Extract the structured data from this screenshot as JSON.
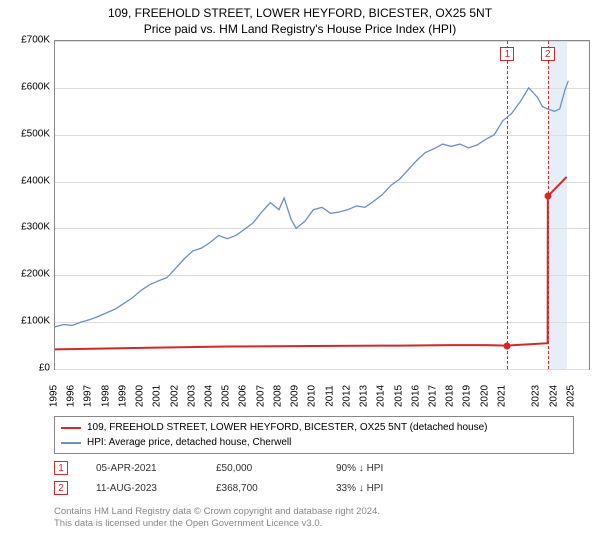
{
  "titles": {
    "main": "109, FREEHOLD STREET, LOWER HEYFORD, BICESTER, OX25 5NT",
    "sub": "Price paid vs. HM Land Registry's House Price Index (HPI)"
  },
  "chart": {
    "type": "line",
    "x_min": 1995,
    "x_max": 2026,
    "y_min": 0,
    "y_max": 700000,
    "y_ticks": [
      0,
      100000,
      200000,
      300000,
      400000,
      500000,
      600000,
      700000
    ],
    "y_labels": [
      "£0",
      "£100K",
      "£200K",
      "£300K",
      "£400K",
      "£500K",
      "£600K",
      "£700K"
    ],
    "x_ticks": [
      1995,
      1996,
      1997,
      1998,
      1999,
      2000,
      2001,
      2002,
      2003,
      2004,
      2005,
      2006,
      2007,
      2008,
      2009,
      2010,
      2011,
      2012,
      2013,
      2014,
      2015,
      2016,
      2017,
      2018,
      2019,
      2020,
      2021,
      2023,
      2024,
      2025
    ],
    "background_color": "#ffffff",
    "grid_color": "#dddddd",
    "border_color": "#888888",
    "highlight_band": {
      "x_start": 2023.6,
      "x_end": 2024.7,
      "color": "#e8eef7"
    },
    "series": [
      {
        "name": "property",
        "color": "#d62728",
        "width": 2,
        "data": [
          [
            1995,
            42000
          ],
          [
            2000,
            45000
          ],
          [
            2005,
            48000
          ],
          [
            2010,
            49000
          ],
          [
            2015,
            50000
          ],
          [
            2018,
            51000
          ],
          [
            2020,
            51000
          ],
          [
            2021.26,
            50000
          ],
          [
            2021.27,
            50000
          ],
          [
            2023.6,
            55000
          ],
          [
            2023.61,
            368700
          ],
          [
            2024.7,
            410000
          ]
        ]
      },
      {
        "name": "hpi",
        "color": "#6b8fc9",
        "width": 1.3,
        "data": [
          [
            1995,
            90000
          ],
          [
            1995.5,
            95000
          ],
          [
            1996,
            93000
          ],
          [
            1996.5,
            100000
          ],
          [
            1997,
            105000
          ],
          [
            1997.5,
            112000
          ],
          [
            1998,
            120000
          ],
          [
            1998.5,
            128000
          ],
          [
            1999,
            140000
          ],
          [
            1999.5,
            152000
          ],
          [
            2000,
            168000
          ],
          [
            2000.5,
            180000
          ],
          [
            2001,
            188000
          ],
          [
            2001.5,
            195000
          ],
          [
            2002,
            215000
          ],
          [
            2002.5,
            235000
          ],
          [
            2003,
            252000
          ],
          [
            2003.5,
            258000
          ],
          [
            2004,
            270000
          ],
          [
            2004.5,
            285000
          ],
          [
            2005,
            278000
          ],
          [
            2005.5,
            285000
          ],
          [
            2006,
            298000
          ],
          [
            2006.5,
            312000
          ],
          [
            2007,
            335000
          ],
          [
            2007.5,
            355000
          ],
          [
            2008,
            340000
          ],
          [
            2008.3,
            365000
          ],
          [
            2008.7,
            320000
          ],
          [
            2009,
            300000
          ],
          [
            2009.5,
            315000
          ],
          [
            2010,
            340000
          ],
          [
            2010.5,
            345000
          ],
          [
            2011,
            332000
          ],
          [
            2011.5,
            335000
          ],
          [
            2012,
            340000
          ],
          [
            2012.5,
            348000
          ],
          [
            2013,
            345000
          ],
          [
            2013.5,
            358000
          ],
          [
            2014,
            372000
          ],
          [
            2014.5,
            392000
          ],
          [
            2015,
            405000
          ],
          [
            2015.5,
            425000
          ],
          [
            2016,
            445000
          ],
          [
            2016.5,
            462000
          ],
          [
            2017,
            470000
          ],
          [
            2017.5,
            480000
          ],
          [
            2018,
            475000
          ],
          [
            2018.5,
            480000
          ],
          [
            2019,
            472000
          ],
          [
            2019.5,
            478000
          ],
          [
            2020,
            490000
          ],
          [
            2020.5,
            500000
          ],
          [
            2021,
            530000
          ],
          [
            2021.5,
            545000
          ],
          [
            2022,
            570000
          ],
          [
            2022.5,
            600000
          ],
          [
            2023,
            580000
          ],
          [
            2023.3,
            560000
          ],
          [
            2023.6,
            555000
          ],
          [
            2024,
            550000
          ],
          [
            2024.3,
            555000
          ],
          [
            2024.6,
            595000
          ],
          [
            2024.8,
            615000
          ]
        ]
      }
    ],
    "markers": [
      {
        "id": "1",
        "x": 2021.26,
        "y": 50000,
        "color": "#d62728"
      },
      {
        "id": "2",
        "x": 2023.61,
        "y": 368700,
        "color": "#d62728"
      }
    ]
  },
  "legend": {
    "items": [
      {
        "color": "#d62728",
        "label": "109, FREEHOLD STREET, LOWER HEYFORD, BICESTER, OX25 5NT (detached house)"
      },
      {
        "color": "#6b8fc9",
        "label": "HPI: Average price, detached house, Cherwell"
      }
    ]
  },
  "marker_table": {
    "rows": [
      {
        "id": "1",
        "color": "#d62728",
        "date": "05-APR-2021",
        "price": "£50,000",
        "pct": "90% ↓ HPI"
      },
      {
        "id": "2",
        "color": "#d62728",
        "date": "11-AUG-2023",
        "price": "£368,700",
        "pct": "33% ↓ HPI"
      }
    ]
  },
  "footer": {
    "line1": "Contains HM Land Registry data © Crown copyright and database right 2024.",
    "line2": "This data is licensed under the Open Government Licence v3.0."
  }
}
